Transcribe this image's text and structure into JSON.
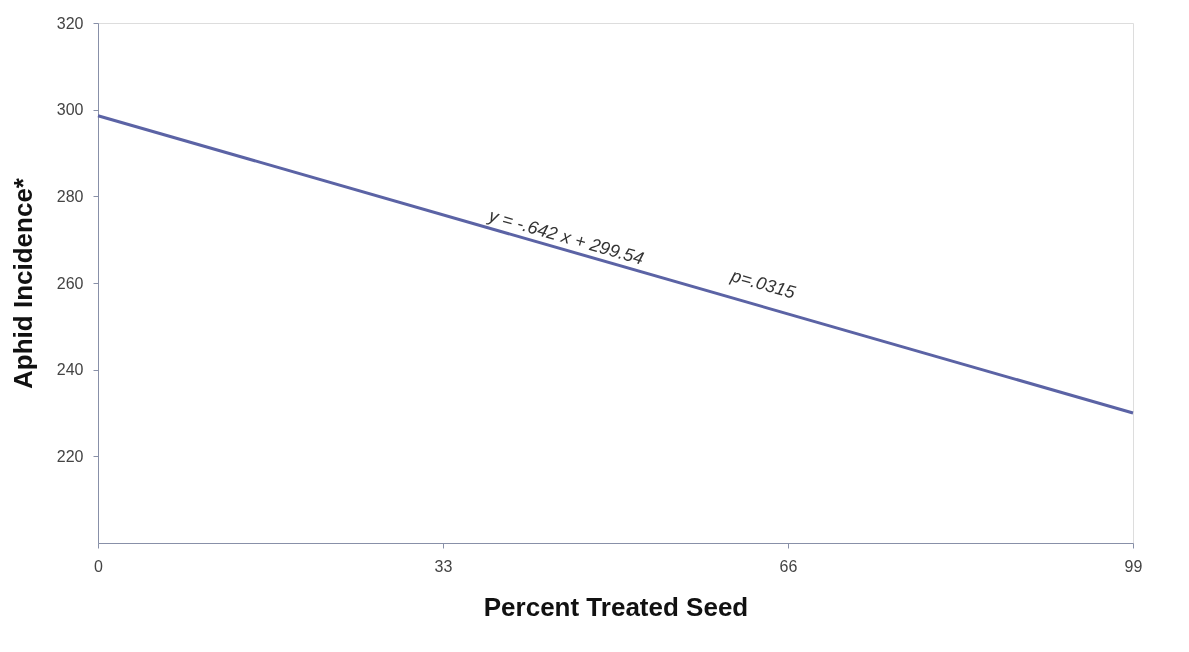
{
  "chart_data": {
    "type": "line",
    "xlabel": "Percent Treated Seed",
    "ylabel": "Aphid Incidence*",
    "x": [
      0,
      99
    ],
    "series": [
      {
        "color": "#5b63a5",
        "values": [
          298.6,
          230
        ]
      }
    ],
    "xlim": [
      0,
      99
    ],
    "xticks": [
      0,
      33,
      66,
      99
    ],
    "ylim": [
      200,
      320
    ],
    "yticks": [
      220,
      240,
      260,
      280,
      300,
      320
    ],
    "annotations": [
      "y = -.642 x + 299.54",
      "p=.0315"
    ],
    "grid": false,
    "marker": "none",
    "line_style": "solid"
  }
}
